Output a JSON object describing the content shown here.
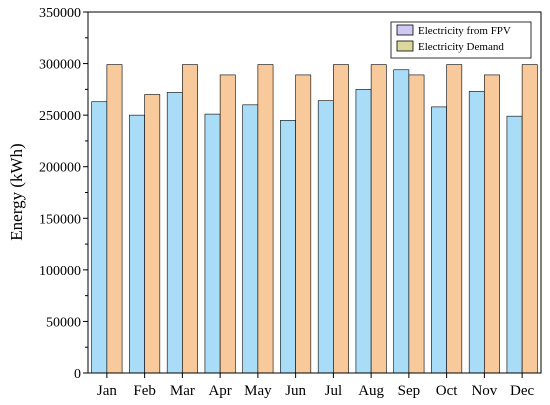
{
  "chart_data": {
    "type": "bar",
    "ylabel": "Energy (kWh)",
    "xlabel": "",
    "ylim": [
      0,
      350000
    ],
    "yticks": [
      0,
      50000,
      100000,
      150000,
      200000,
      250000,
      300000,
      350000
    ],
    "ytick_labels": [
      "0",
      "50000",
      "100000",
      "150000",
      "200000",
      "250000",
      "300000",
      "350000"
    ],
    "categories": [
      "Jan",
      "Feb",
      "Mar",
      "Apr",
      "May",
      "Jun",
      "Jul",
      "Aug",
      "Sep",
      "Oct",
      "Nov",
      "Dec"
    ],
    "series": [
      {
        "name": "Electricity from FPV",
        "color": "#a9dcf6",
        "values": [
          263000,
          250000,
          272000,
          251000,
          260000,
          245000,
          264000,
          275000,
          294000,
          258000,
          273000,
          249000
        ]
      },
      {
        "name": "Electricity Demand",
        "color": "#f8c99a",
        "values": [
          299000,
          270000,
          299000,
          289000,
          299000,
          289000,
          299000,
          299000,
          289000,
          299000,
          289000,
          299000
        ]
      }
    ],
    "legend_colors": [
      "#cfc9f3",
      "#dcd79c"
    ],
    "legend_position": "top-right",
    "grid": false
  }
}
